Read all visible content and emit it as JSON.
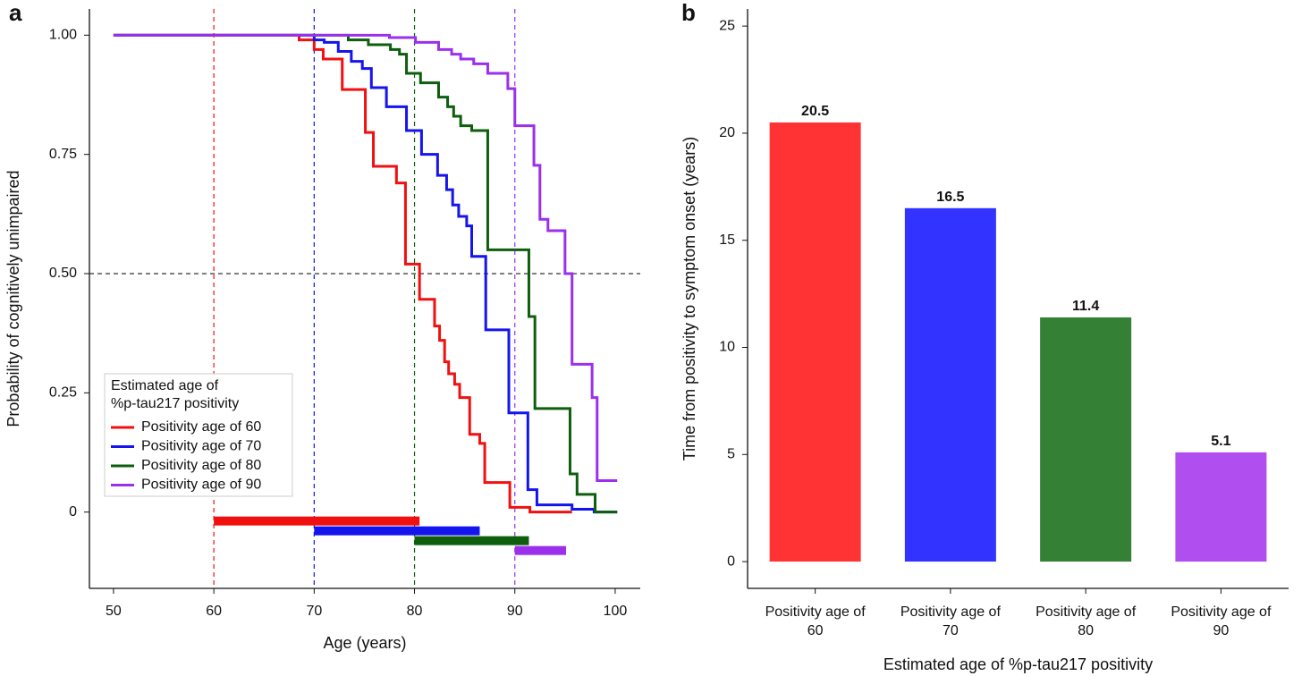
{
  "chart_data": [
    {
      "type": "step",
      "panel_label": "a",
      "x_label": "Age (years)",
      "y_label": "Probability of cognitively unimpaired",
      "xlim": [
        47.6,
        102.5
      ],
      "ylim": [
        -0.16,
        1.055
      ],
      "xticks": [
        50,
        60,
        70,
        80,
        90,
        100
      ],
      "yticks": [
        0,
        0.25,
        {
          "value": 0.5,
          "label": "0.50"
        },
        0.75,
        {
          "value": 1,
          "label": "1.00"
        }
      ],
      "hline": 0.5,
      "legend_title": [
        "Estimated age of",
        "%p-tau217 positivity"
      ],
      "series": [
        {
          "name": "Positivity age of 60",
          "color": "#f01010",
          "range": [
            60,
            80.5
          ],
          "x": [
            50,
            68.5,
            70,
            70.9,
            72.8,
            75.1,
            75.9,
            78.2,
            79.1,
            80.5,
            82,
            82.5,
            83,
            83.4,
            84,
            84.5,
            85.5,
            86.5,
            87,
            89.5,
            91.5,
            95.7
          ],
          "values": [
            1,
            0.99,
            0.97,
            0.95,
            0.886,
            0.796,
            0.725,
            0.69,
            0.52,
            0.446,
            0.39,
            0.36,
            0.315,
            0.29,
            0.268,
            0.24,
            0.163,
            0.144,
            0.062,
            0.01,
            0,
            0
          ]
        },
        {
          "name": "Positivity age of 70",
          "color": "#1414ee",
          "range": [
            70,
            86.5
          ],
          "x": [
            50,
            70,
            71,
            72.4,
            73.7,
            74.8,
            75.7,
            77.2,
            79.2,
            80.7,
            82.3,
            83.2,
            83.8,
            84.4,
            85.2,
            85.7,
            87.1,
            89.4,
            91.3,
            92.2,
            95.7,
            97.9,
            100.2
          ],
          "values": [
            1,
            0.99,
            0.985,
            0.966,
            0.945,
            0.93,
            0.89,
            0.85,
            0.8,
            0.75,
            0.706,
            0.676,
            0.644,
            0.62,
            0.6,
            0.536,
            0.382,
            0.208,
            0.047,
            0.015,
            0.006,
            0,
            0
          ]
        },
        {
          "name": "Positivity age of 80",
          "color": "#0e5e0e",
          "range": [
            80,
            91.4
          ],
          "x": [
            50,
            73.4,
            75.4,
            77.6,
            78.5,
            79.2,
            80.6,
            82.4,
            83.3,
            83.9,
            84.6,
            85.7,
            87.3,
            91.4,
            92,
            95.5,
            96.2,
            98,
            100.2
          ],
          "values": [
            1,
            0.99,
            0.98,
            0.97,
            0.96,
            0.92,
            0.9,
            0.87,
            0.85,
            0.83,
            0.81,
            0.8,
            0.55,
            0.41,
            0.217,
            0.08,
            0.037,
            0,
            0
          ]
        },
        {
          "name": "Positivity age of 90",
          "color": "#9a30ec",
          "range": [
            90,
            95.1
          ],
          "x": [
            50,
            77.5,
            80.1,
            82.4,
            83.7,
            84.6,
            85.9,
            87.3,
            89.3,
            90,
            91.9,
            92.5,
            93.3,
            95,
            95.7,
            97.7,
            98.2,
            100.2
          ],
          "values": [
            1,
            0.995,
            0.985,
            0.97,
            0.96,
            0.95,
            0.94,
            0.92,
            0.888,
            0.81,
            0.727,
            0.614,
            0.59,
            0.5,
            0.31,
            0.24,
            0.066,
            0.066
          ]
        }
      ]
    },
    {
      "type": "bar",
      "panel_label": "b",
      "x_label": "Estimated age of %p-tau217 positivity",
      "y_label": "Time from positivity to symptom onset (years)",
      "categories": [
        "Positivity age of 60",
        "Positivity age of 70",
        "Positivity age of 80",
        "Positivity age of 90"
      ],
      "values": [
        20.5,
        16.5,
        11.4,
        5.1
      ],
      "colors": [
        "#ff3333",
        "#3333ff",
        "#348034",
        "#b04ef0"
      ],
      "ylim": [
        -1.25,
        25.8
      ],
      "yticks": [
        0,
        5,
        10,
        15,
        20,
        25
      ]
    }
  ]
}
